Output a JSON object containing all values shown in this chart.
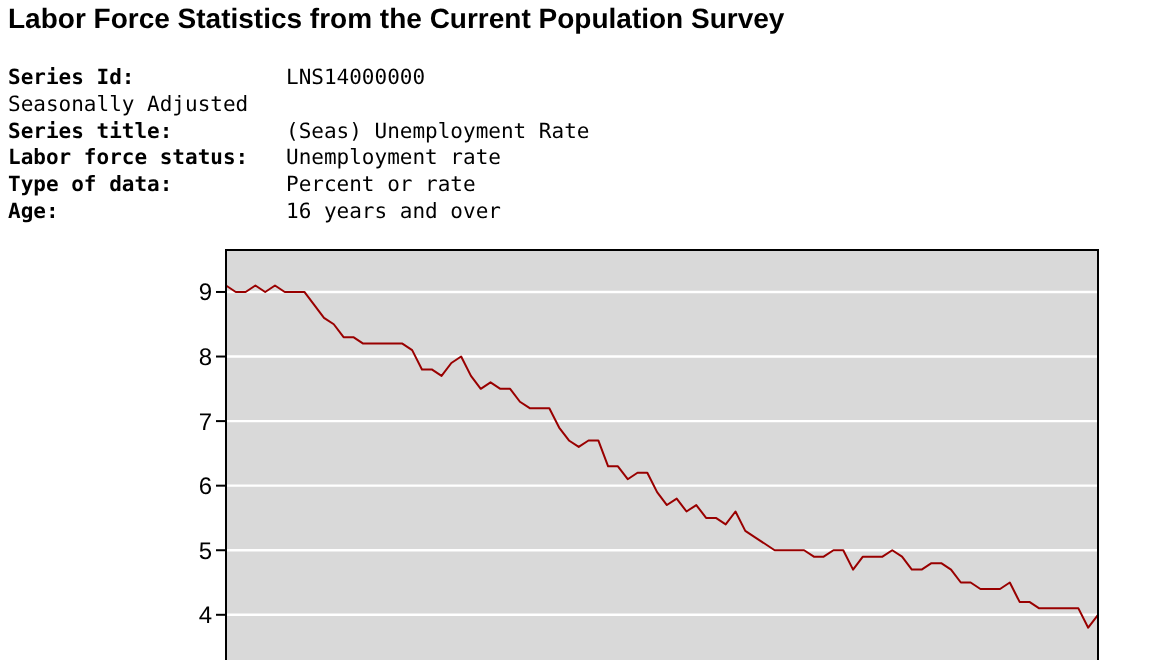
{
  "chart_data": {
    "type": "line",
    "title": "Labor Force Statistics from the Current Population Survey",
    "annotations": [
      "Series Id:\tLNS14000000",
      "Seasonally Adjusted",
      "Series title:\t(Seas) Unemployment Rate",
      "Labor force status:\tUnemployment rate",
      "Type of data:\tPercent or rate",
      "Age:\t16 years and over"
    ],
    "categories": [
      null,
      null,
      null,
      null,
      null,
      null,
      null,
      null,
      null,
      null,
      null,
      null,
      null,
      null,
      null,
      null,
      null,
      null,
      null,
      null,
      null,
      null,
      null,
      null,
      null,
      null,
      null,
      null,
      null,
      null,
      null,
      null,
      null,
      null,
      null,
      null,
      null,
      null,
      null,
      null,
      null,
      null,
      null,
      null,
      null,
      null,
      null,
      null,
      null,
      null,
      null,
      null,
      null,
      null,
      null,
      null,
      null,
      null,
      null,
      null,
      null,
      null,
      null,
      null,
      null,
      null,
      null,
      null,
      null,
      null,
      null,
      null,
      null,
      null,
      null,
      null,
      null,
      null,
      null,
      null,
      null,
      null,
      null,
      null,
      null,
      null,
      null,
      null,
      null,
      null
    ],
    "series": [
      {
        "color": "#990000",
        "values": [
          9.1,
          9.0,
          9.0,
          9.1,
          9.0,
          9.1,
          9.0,
          9.0,
          9.0,
          8.8,
          8.6,
          8.5,
          8.3,
          8.3,
          8.2,
          8.2,
          8.2,
          8.2,
          8.2,
          8.1,
          7.8,
          7.8,
          7.7,
          7.9,
          8.0,
          7.7,
          7.5,
          7.6,
          7.5,
          7.5,
          7.3,
          7.2,
          7.2,
          7.2,
          6.9,
          6.7,
          6.6,
          6.7,
          6.7,
          6.3,
          6.3,
          6.1,
          6.2,
          6.2,
          5.9,
          5.7,
          5.8,
          5.6,
          5.7,
          5.5,
          5.5,
          5.4,
          5.6,
          5.3,
          5.2,
          5.1,
          5.0,
          5.0,
          5.0,
          5.0,
          4.9,
          4.9,
          5.0,
          5.0,
          4.7,
          4.9,
          4.9,
          4.9,
          5.0,
          4.9,
          4.7,
          4.7,
          4.8,
          4.8,
          4.7,
          4.5,
          4.5,
          4.4,
          4.4,
          4.4,
          4.5,
          4.2,
          4.2,
          4.1,
          4.1,
          4.1,
          4.1,
          4.1,
          3.8,
          4.0
        ]
      }
    ],
    "ylim": [
      3.3,
      9.65
    ],
    "yticks": [
      4,
      5,
      6,
      7,
      8,
      9
    ],
    "grid": "y",
    "tick_labels": "y",
    "line_style": "solid",
    "marker": "none"
  }
}
